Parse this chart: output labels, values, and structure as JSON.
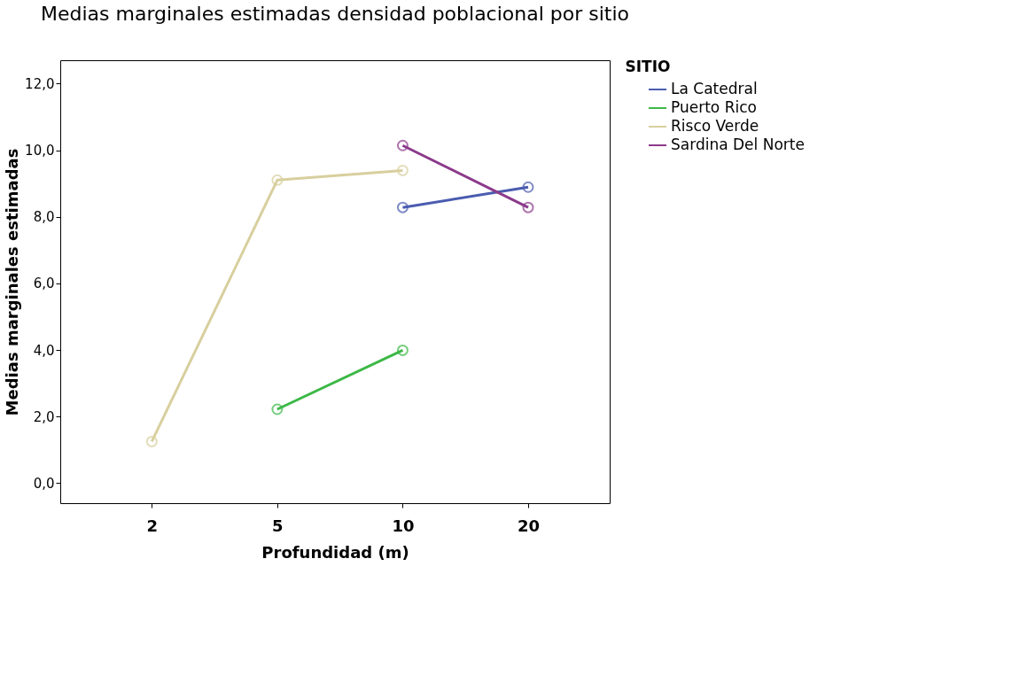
{
  "chart_data": {
    "type": "line",
    "title": "Medias marginales estimadas densidad poblacional por sitio",
    "xlabel": "Profundidad (m)",
    "ylabel": "Medias marginales estimadas",
    "legend_title": "SITIO",
    "categories": [
      "2",
      "5",
      "10",
      "20"
    ],
    "series": [
      {
        "name": "La Catedral",
        "color": "#4a5cb0",
        "values": [
          null,
          null,
          8.28,
          8.89
        ]
      },
      {
        "name": "Puerto Rico",
        "color": "#3cb846",
        "values": [
          null,
          2.22,
          3.99,
          null
        ]
      },
      {
        "name": "Risco Verde",
        "color": "#d8cf9e",
        "values": [
          1.25,
          9.1,
          9.39,
          null
        ]
      },
      {
        "name": "Sardina Del Norte",
        "color": "#8b3a8b",
        "values": [
          null,
          null,
          10.14,
          8.28
        ]
      }
    ],
    "ylim": [
      -0.6,
      12.7
    ],
    "yticks": [
      {
        "value": 0,
        "label": "0,0"
      },
      {
        "value": 2,
        "label": "2,0"
      },
      {
        "value": 4,
        "label": "4,0"
      },
      {
        "value": 6,
        "label": "6,0"
      },
      {
        "value": 8,
        "label": "8,0"
      },
      {
        "value": 10,
        "label": "10,0"
      },
      {
        "value": 12,
        "label": "12,0"
      }
    ],
    "grid": false,
    "legend": "top right",
    "marker": "circle",
    "line_style": "solid"
  }
}
